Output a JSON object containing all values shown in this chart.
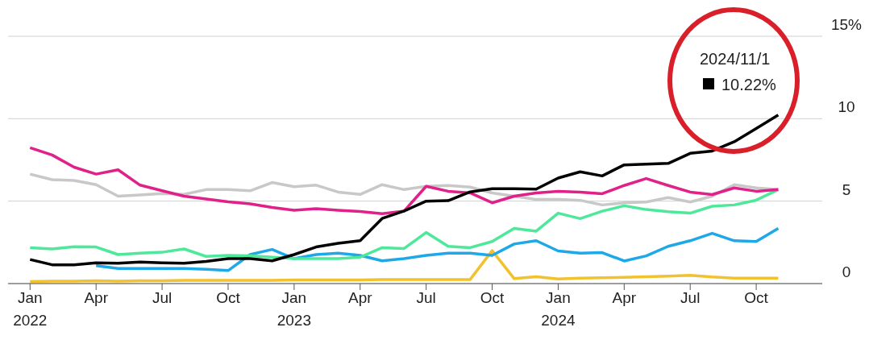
{
  "chart_data": {
    "type": "line",
    "x": [
      "2022-01",
      "2022-02",
      "2022-03",
      "2022-04",
      "2022-05",
      "2022-06",
      "2022-07",
      "2022-08",
      "2022-09",
      "2022-10",
      "2022-11",
      "2022-12",
      "2023-01",
      "2023-02",
      "2023-03",
      "2023-04",
      "2023-05",
      "2023-06",
      "2023-07",
      "2023-08",
      "2023-09",
      "2023-10",
      "2023-11",
      "2023-12",
      "2024-01",
      "2024-02",
      "2024-03",
      "2024-04",
      "2024-05",
      "2024-06",
      "2024-07",
      "2024-08",
      "2024-09",
      "2024-10",
      "2024-11"
    ],
    "series": [
      {
        "color": "#c8c8c8",
        "values": [
          6.64,
          6.3,
          6.25,
          6.0,
          5.3,
          5.38,
          5.46,
          5.41,
          5.7,
          5.7,
          5.63,
          6.13,
          5.88,
          5.97,
          5.55,
          5.41,
          6.0,
          5.7,
          5.9,
          5.95,
          5.85,
          5.5,
          5.3,
          5.1,
          5.1,
          5.05,
          4.77,
          4.9,
          4.95,
          5.22,
          4.95,
          5.3,
          6.0,
          5.8,
          5.7
        ]
      },
      {
        "color": "#f2c12e",
        "values": [
          0.12,
          0.15,
          0.15,
          0.17,
          0.15,
          0.17,
          0.17,
          0.2,
          0.2,
          0.2,
          0.2,
          0.2,
          0.22,
          0.22,
          0.22,
          0.22,
          0.25,
          0.25,
          0.25,
          0.25,
          0.25,
          2.0,
          0.3,
          0.42,
          0.28,
          0.33,
          0.35,
          0.38,
          0.42,
          0.45,
          0.5,
          0.4,
          0.33,
          0.33,
          0.33
        ]
      },
      {
        "color": "#1fa8e8",
        "values": [
          null,
          null,
          null,
          1.09,
          0.92,
          0.92,
          0.92,
          0.92,
          0.87,
          0.79,
          1.76,
          2.07,
          1.51,
          1.76,
          1.85,
          1.71,
          1.38,
          1.51,
          1.71,
          1.84,
          1.84,
          1.71,
          2.4,
          2.6,
          1.98,
          1.84,
          1.88,
          1.37,
          1.68,
          2.26,
          2.6,
          3.05,
          2.6,
          2.55,
          3.35
        ]
      },
      {
        "color": "#4ee89a",
        "values": [
          2.18,
          2.1,
          2.24,
          2.22,
          1.76,
          1.85,
          1.9,
          2.1,
          1.65,
          1.71,
          1.68,
          1.6,
          1.51,
          1.51,
          1.51,
          1.6,
          2.18,
          2.13,
          3.1,
          2.26,
          2.18,
          2.55,
          3.35,
          3.18,
          4.27,
          3.94,
          4.39,
          4.72,
          4.49,
          4.36,
          4.27,
          4.69,
          4.77,
          5.06,
          5.7
        ]
      },
      {
        "color": "#e0218a",
        "values": [
          8.24,
          7.8,
          7.06,
          6.64,
          6.9,
          5.97,
          5.63,
          5.3,
          5.13,
          4.96,
          4.84,
          4.62,
          4.45,
          4.54,
          4.45,
          4.37,
          4.24,
          4.4,
          5.9,
          5.6,
          5.5,
          4.9,
          5.3,
          5.5,
          5.6,
          5.55,
          5.45,
          5.95,
          6.37,
          5.95,
          5.55,
          5.4,
          5.8,
          5.6,
          5.7
        ]
      },
      {
        "color": "#000000",
        "values": [
          1.46,
          1.14,
          1.14,
          1.26,
          1.23,
          1.31,
          1.26,
          1.23,
          1.34,
          1.51,
          1.51,
          1.38,
          1.76,
          2.22,
          2.44,
          2.6,
          3.95,
          4.4,
          5.0,
          5.03,
          5.56,
          5.75,
          5.75,
          5.73,
          6.4,
          6.78,
          6.53,
          7.2,
          7.24,
          7.29,
          7.9,
          8.04,
          8.6,
          9.4,
          10.22
        ]
      }
    ],
    "xlim": [
      "2021-12",
      "2025-01"
    ],
    "xticks": [
      {
        "value": "2022-01",
        "label": "Jan\n2022"
      },
      {
        "value": "2022-04",
        "label": "Apr"
      },
      {
        "value": "2022-07",
        "label": "Jul"
      },
      {
        "value": "2022-10",
        "label": "Oct"
      },
      {
        "value": "2023-01",
        "label": "Jan\n2023"
      },
      {
        "value": "2023-04",
        "label": "Apr"
      },
      {
        "value": "2023-07",
        "label": "Jul"
      },
      {
        "value": "2023-10",
        "label": "Oct"
      },
      {
        "value": "2024-01",
        "label": "Jan\n2024"
      },
      {
        "value": "2024-04",
        "label": "Apr"
      },
      {
        "value": "2024-07",
        "label": "Jul"
      },
      {
        "value": "2024-10",
        "label": "Oct"
      }
    ],
    "ylim": [
      0,
      15
    ],
    "yticks": [
      0,
      5,
      10,
      {
        "value": 15,
        "label": "15%"
      }
    ],
    "grid": "y",
    "marker": "none",
    "annotations": [
      "2024/11/1",
      "10.22%"
    ]
  }
}
